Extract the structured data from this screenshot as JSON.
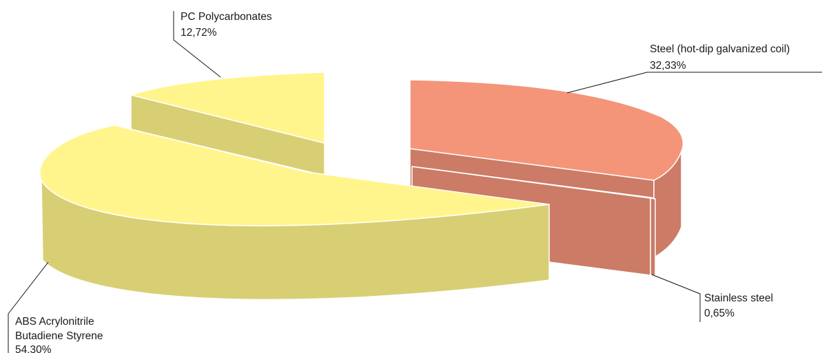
{
  "chart_data": {
    "type": "pie",
    "three_d": true,
    "exploded": true,
    "slices": [
      {
        "label": "Steel (hot-dip galvanized coil)",
        "value_text": "32,33%",
        "value": 32.33,
        "color": "#f4957a",
        "side_color": "#cc7b66"
      },
      {
        "label": "Stainless steel",
        "value_text": "0,65%",
        "value": 0.65,
        "color": "#f4957a",
        "side_color": "#cc7b66"
      },
      {
        "label": "ABS Acrylonitrile Butadiene Styrene",
        "label_lines": [
          "ABS Acrylonitrile",
          "Butadiene Styrene"
        ],
        "value_text": "54.30%",
        "value": 54.3,
        "color": "#fff58c",
        "side_color": "#d8cf74"
      },
      {
        "label": "PC Polycarbonates",
        "value_text": "12,72%",
        "value": 12.72,
        "color": "#fff58c",
        "side_color": "#d8cf74"
      }
    ]
  }
}
